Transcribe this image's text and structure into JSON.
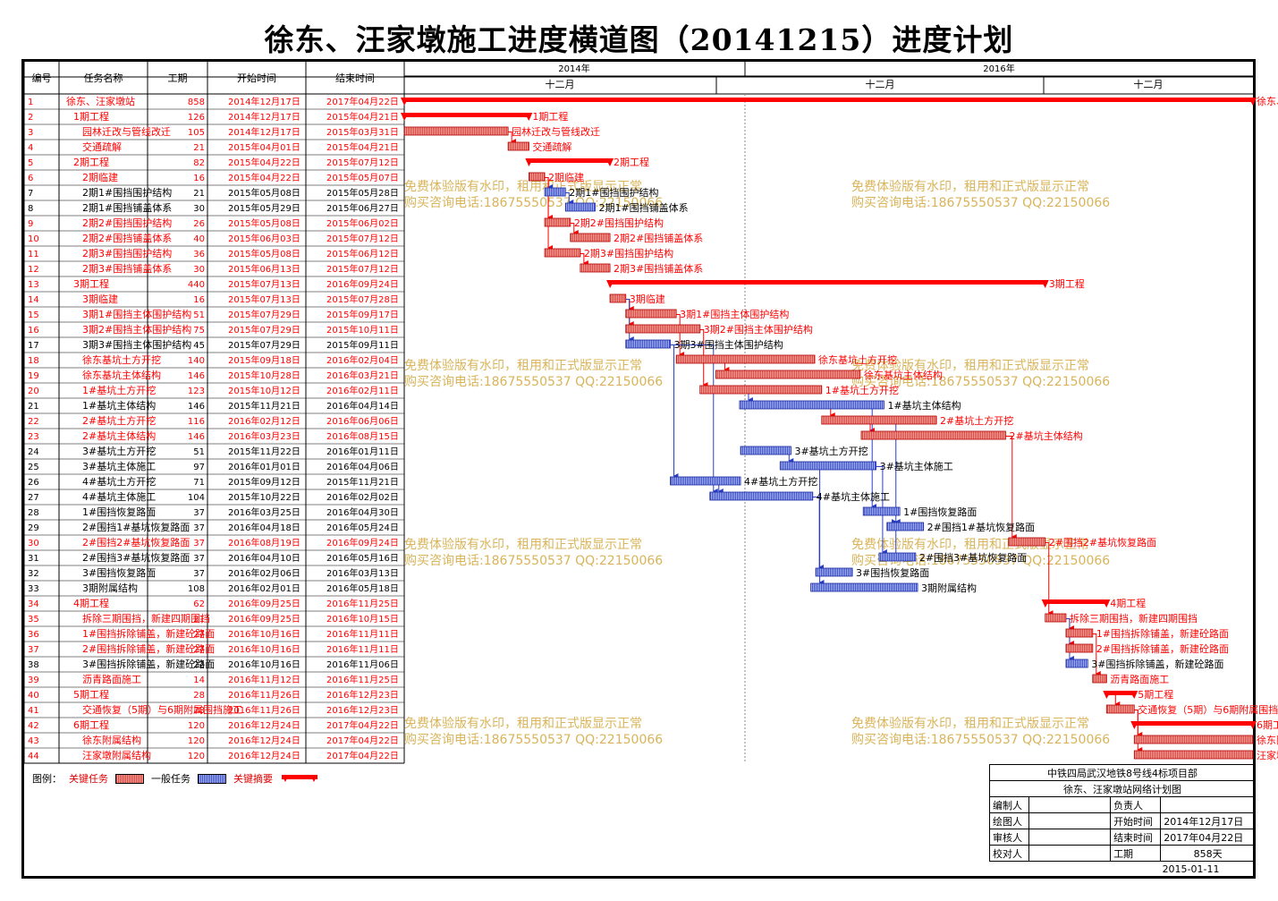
{
  "title": "徐东、汪家墩施工进度横道图（20141215）进度计划",
  "columns": [
    "编号",
    "任务名称",
    "工期",
    "开始时间",
    "结束时间"
  ],
  "timescale": {
    "years": [
      "2014年",
      "2016年"
    ],
    "months": [
      "十二月",
      "十二月",
      "十二月"
    ]
  },
  "watermark": [
    "免费体验版有水印，租用和正式版显示正常",
    "购买咨询电话:18675550537 QQ:22150066"
  ],
  "legend": {
    "label": "图例：",
    "critical": "关键任务",
    "normal": "一般任务",
    "summary": "关键摘要"
  },
  "titleblock": {
    "company": "中铁四局武汉地铁8号线4标项目部",
    "plan": "徐东、汪家墩站网络计划图",
    "rows": [
      [
        "编制人",
        "",
        "负责人",
        ""
      ],
      [
        "绘图人",
        "",
        "开始时间",
        "2014年12月17日"
      ],
      [
        "审核人",
        "",
        "结束时间",
        "2017年04月22日"
      ],
      [
        "校对人",
        "",
        "工期",
        "858天"
      ]
    ],
    "date": "2015-01-11"
  },
  "colors": {
    "critical": "#e8423c",
    "summary": "#ff0000",
    "normal": "#3b4fd8",
    "watermark": "#d9b45a"
  },
  "chart_data": {
    "type": "gantt",
    "x_range": [
      "2014-12-17",
      "2017-04-22"
    ],
    "tasks": [
      {
        "id": 1,
        "name": "徐东、汪家墩站",
        "dur": 858,
        "start": "2014年12月17日",
        "end": "2017年04月22日",
        "kind": "summary",
        "label": "徐东、汪家墩站"
      },
      {
        "id": 2,
        "name": "1期工程",
        "dur": 126,
        "start": "2014年12月17日",
        "end": "2015年04月21日",
        "kind": "summary",
        "label": "1期工程"
      },
      {
        "id": 3,
        "name": "园林迁改与管线改迁",
        "dur": 105,
        "start": "2014年12月17日",
        "end": "2015年03月31日",
        "kind": "critical",
        "label": "园林迁改与管线改迁"
      },
      {
        "id": 4,
        "name": "交通疏解",
        "dur": 21,
        "start": "2015年04月01日",
        "end": "2015年04月21日",
        "kind": "critical",
        "label": "交通疏解"
      },
      {
        "id": 5,
        "name": "2期工程",
        "dur": 82,
        "start": "2015年04月22日",
        "end": "2015年07月12日",
        "kind": "summary",
        "label": "2期工程"
      },
      {
        "id": 6,
        "name": "2期临建",
        "dur": 16,
        "start": "2015年04月22日",
        "end": "2015年05月07日",
        "kind": "critical",
        "label": "2期临建"
      },
      {
        "id": 7,
        "name": "2期1#围挡围护结构",
        "dur": 21,
        "start": "2015年05月08日",
        "end": "2015年05月28日",
        "kind": "normal",
        "label": "2期1#围挡围护结构"
      },
      {
        "id": 8,
        "name": "2期1#围挡铺盖体系",
        "dur": 30,
        "start": "2015年05月29日",
        "end": "2015年06月27日",
        "kind": "normal",
        "label": "2期1#围挡铺盖体系"
      },
      {
        "id": 9,
        "name": "2期2#围挡围护结构",
        "dur": 26,
        "start": "2015年05月08日",
        "end": "2015年06月02日",
        "kind": "critical",
        "label": "2期2#围挡围护结构"
      },
      {
        "id": 10,
        "name": "2期2#围挡铺盖体系",
        "dur": 40,
        "start": "2015年06月03日",
        "end": "2015年07月12日",
        "kind": "critical",
        "label": "2期2#围挡铺盖体系"
      },
      {
        "id": 11,
        "name": "2期3#围挡围护结构",
        "dur": 36,
        "start": "2015年05月08日",
        "end": "2015年06月12日",
        "kind": "critical",
        "label": "2期3#围挡围护结构"
      },
      {
        "id": 12,
        "name": "2期3#围挡铺盖体系",
        "dur": 30,
        "start": "2015年06月13日",
        "end": "2015年07月12日",
        "kind": "critical",
        "label": "2期3#围挡铺盖体系"
      },
      {
        "id": 13,
        "name": "3期工程",
        "dur": 440,
        "start": "2015年07月13日",
        "end": "2016年09月24日",
        "kind": "summary",
        "label": "3期工程"
      },
      {
        "id": 14,
        "name": "3期临建",
        "dur": 16,
        "start": "2015年07月13日",
        "end": "2015年07月28日",
        "kind": "critical",
        "label": "3期临建"
      },
      {
        "id": 15,
        "name": "3期1#围挡主体围护结构",
        "dur": 51,
        "start": "2015年07月29日",
        "end": "2015年09月17日",
        "kind": "critical",
        "label": "3期1#围挡主体围护结构"
      },
      {
        "id": 16,
        "name": "3期2#围挡主体围护结构",
        "dur": 75,
        "start": "2015年07月29日",
        "end": "2015年10月11日",
        "kind": "critical",
        "label": "3期2#围挡主体围护结构"
      },
      {
        "id": 17,
        "name": "3期3#围挡主体围护结构",
        "dur": 45,
        "start": "2015年07月29日",
        "end": "2015年09月11日",
        "kind": "normal",
        "label": "3期3#围挡主体围护结构"
      },
      {
        "id": 18,
        "name": "徐东基坑土方开挖",
        "dur": 140,
        "start": "2015年09月18日",
        "end": "2016年02月04日",
        "kind": "critical",
        "label": "徐东基坑土方开挖"
      },
      {
        "id": 19,
        "name": "徐东基坑主体结构",
        "dur": 146,
        "start": "2015年10月28日",
        "end": "2016年03月21日",
        "kind": "critical",
        "label": "徐东基坑主体结构"
      },
      {
        "id": 20,
        "name": "1#基坑土方开挖",
        "dur": 123,
        "start": "2015年10月12日",
        "end": "2016年02月11日",
        "kind": "critical",
        "label": "1#基坑土方开挖"
      },
      {
        "id": 21,
        "name": "1#基坑主体结构",
        "dur": 146,
        "start": "2015年11月21日",
        "end": "2016年04月14日",
        "kind": "normal",
        "label": "1#基坑主体结构"
      },
      {
        "id": 22,
        "name": "2#基坑土方开挖",
        "dur": 116,
        "start": "2016年02月12日",
        "end": "2016年06月06日",
        "kind": "critical",
        "label": "2#基坑土方开挖"
      },
      {
        "id": 23,
        "name": "2#基坑主体结构",
        "dur": 146,
        "start": "2016年03月23日",
        "end": "2016年08月15日",
        "kind": "critical",
        "label": "2#基坑主体结构"
      },
      {
        "id": 24,
        "name": "3#基坑土方开挖",
        "dur": 51,
        "start": "2015年11月22日",
        "end": "2016年01月11日",
        "kind": "normal",
        "label": "3#基坑土方开挖"
      },
      {
        "id": 25,
        "name": "3#基坑主体施工",
        "dur": 97,
        "start": "2016年01月01日",
        "end": "2016年04月06日",
        "kind": "normal",
        "label": "3#基坑主体施工"
      },
      {
        "id": 26,
        "name": "4#基坑土方开挖",
        "dur": 71,
        "start": "2015年09月12日",
        "end": "2015年11月21日",
        "kind": "normal",
        "label": "4#基坑土方开挖"
      },
      {
        "id": 27,
        "name": "4#基坑主体施工",
        "dur": 104,
        "start": "2015年10月22日",
        "end": "2016年02月02日",
        "kind": "normal",
        "label": "4#基坑主体施工"
      },
      {
        "id": 28,
        "name": "1#围挡恢复路面",
        "dur": 37,
        "start": "2016年03月25日",
        "end": "2016年04月30日",
        "kind": "normal",
        "label": "1#围挡恢复路面"
      },
      {
        "id": 29,
        "name": "2#围挡1#基坑恢复路面",
        "dur": 37,
        "start": "2016年04月18日",
        "end": "2016年05月24日",
        "kind": "normal",
        "label": "2#围挡1#基坑恢复路面"
      },
      {
        "id": 30,
        "name": "2#围挡2#基坑恢复路面",
        "dur": 37,
        "start": "2016年08月19日",
        "end": "2016年09月24日",
        "kind": "critical",
        "label": "2#围挡2#基坑恢复路面"
      },
      {
        "id": 31,
        "name": "2#围挡3#基坑恢复路面",
        "dur": 37,
        "start": "2016年04月10日",
        "end": "2016年05月16日",
        "kind": "normal",
        "label": "2#围挡3#基坑恢复路面"
      },
      {
        "id": 32,
        "name": "3#围挡恢复路面",
        "dur": 37,
        "start": "2016年02月06日",
        "end": "2016年03月13日",
        "kind": "normal",
        "label": "3#围挡恢复路面"
      },
      {
        "id": 33,
        "name": "3期附属结构",
        "dur": 108,
        "start": "2016年02月01日",
        "end": "2016年05月18日",
        "kind": "normal",
        "label": "3期附属结构"
      },
      {
        "id": 34,
        "name": "4期工程",
        "dur": 62,
        "start": "2016年09月25日",
        "end": "2016年11月25日",
        "kind": "summary",
        "label": "4期工程"
      },
      {
        "id": 35,
        "name": "拆除三期围挡，新建四期围挡",
        "dur": 21,
        "start": "2016年09月25日",
        "end": "2016年10月15日",
        "kind": "critical",
        "label": "拆除三期围挡，新建四期围挡"
      },
      {
        "id": 36,
        "name": "1#围挡拆除铺盖，新建砼路面",
        "dur": 27,
        "start": "2016年10月16日",
        "end": "2016年11月11日",
        "kind": "critical",
        "label": "1#围挡拆除铺盖，新建砼路面"
      },
      {
        "id": 37,
        "name": "2#围挡拆除铺盖，新建砼路面",
        "dur": 27,
        "start": "2016年10月16日",
        "end": "2016年11月11日",
        "kind": "critical",
        "label": "2#围挡拆除铺盖，新建砼路面"
      },
      {
        "id": 38,
        "name": "3#围挡拆除铺盖，新建砼路面",
        "dur": 22,
        "start": "2016年10月16日",
        "end": "2016年11月06日",
        "kind": "normal",
        "label": "3#围挡拆除铺盖，新建砼路面"
      },
      {
        "id": 39,
        "name": "沥青路面施工",
        "dur": 14,
        "start": "2016年11月12日",
        "end": "2016年11月25日",
        "kind": "critical",
        "label": "沥青路面施工"
      },
      {
        "id": 40,
        "name": "5期工程",
        "dur": 28,
        "start": "2016年11月26日",
        "end": "2016年12月23日",
        "kind": "summary",
        "label": "5期工程"
      },
      {
        "id": 41,
        "name": "交通恢复（5期）与6期附属围挡施工",
        "dur": 28,
        "start": "2016年11月26日",
        "end": "2016年12月23日",
        "kind": "critical",
        "label": "交通恢复（5期）与6期附属围挡施工）"
      },
      {
        "id": 42,
        "name": "6期工程",
        "dur": 120,
        "start": "2016年12月24日",
        "end": "2017年04月22日",
        "kind": "summary",
        "label": "6期工程"
      },
      {
        "id": 43,
        "name": "徐东附属结构",
        "dur": 120,
        "start": "2016年12月24日",
        "end": "2017年04月22日",
        "kind": "critical",
        "label": "徐东附属结构"
      },
      {
        "id": 44,
        "name": "汪家墩附属结构",
        "dur": 120,
        "start": "2016年12月24日",
        "end": "2017年04月22日",
        "kind": "critical",
        "label": "汪家墩附属结构"
      }
    ]
  }
}
